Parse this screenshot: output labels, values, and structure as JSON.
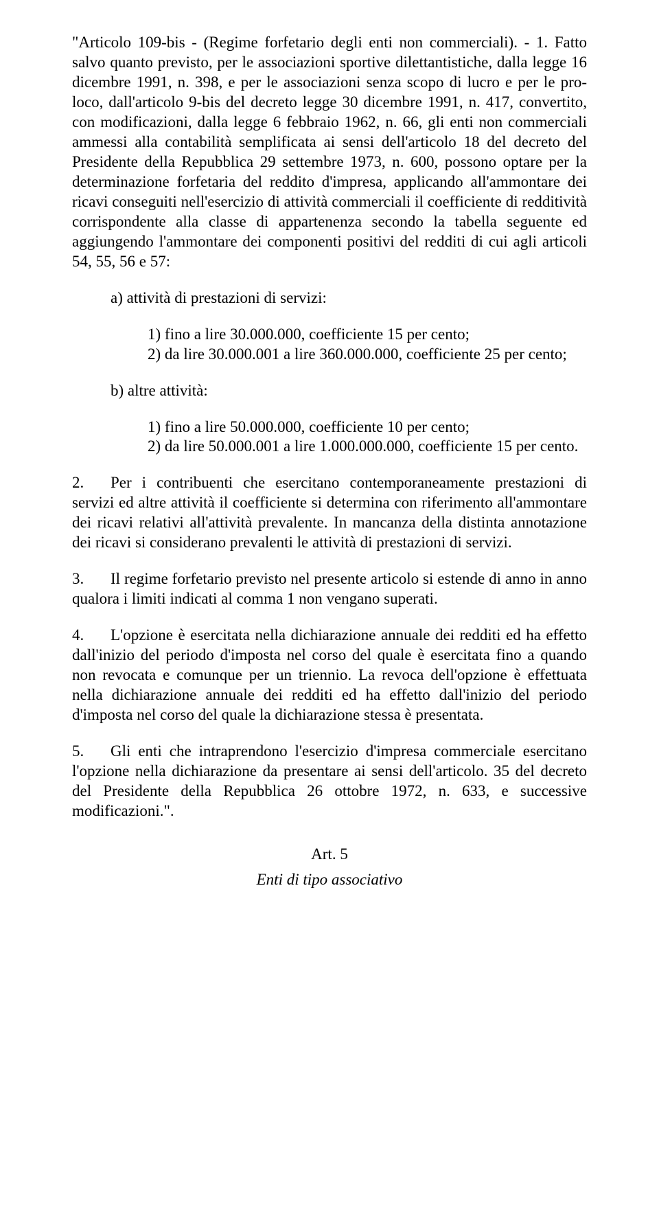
{
  "p_intro": "\"Articolo 109-bis - (Regime forfetario degli enti non commerciali). - 1. Fatto salvo quanto previsto, per le associazioni sportive dilettantistiche, dalla legge 16 dicembre 1991, n. 398, e per le associazioni senza scopo di lucro e per le pro-loco, dall'articolo 9-bis del decreto legge 30 dicembre 1991, n. 417, convertito, con modificazioni, dalla legge 6 febbraio 1962, n. 66, gli enti non commerciali ammessi alla contabilità semplificata ai sensi dell'articolo 18 del decreto del Presidente della Repubblica 29 settembre 1973, n. 600, possono optare per la determinazione forfetaria del reddito d'impresa, applicando all'ammontare dei ricavi conseguiti nell'esercizio di attività commerciali il coefficiente di redditività corrispondente alla classe di appartenenza secondo la tabella seguente ed aggiungendo l'ammontare dei componenti positivi del redditi di cui agli articoli 54, 55, 56 e 57:",
  "list_a_label": "a) attività di prestazioni di servizi:",
  "list_a_1": "1) fino a lire 30.000.000, coefficiente 15 per cento;",
  "list_a_2": "2) da lire 30.000.001 a lire 360.000.000, coefficiente 25 per cento;",
  "list_b_label": "b) altre attività:",
  "list_b_1": "1) fino a lire 50.000.000, coefficiente 10 per cento;",
  "list_b_2": "2) da lire 50.000.001 a lire 1.000.000.000, coefficiente 15 per cento.",
  "p2_num": "2.",
  "p2_text": "Per i contribuenti che esercitano contemporaneamente prestazioni di servizi ed altre attività il coefficiente si determina con riferimento all'ammontare dei ricavi relativi all'attività prevalente. In mancanza della distinta annotazione dei ricavi si considerano prevalenti le attività di prestazioni di servizi.",
  "p3_num": "3.",
  "p3_text": "Il regime forfetario previsto nel presente articolo si estende di anno in anno qualora i limiti indicati al comma 1 non vengano superati.",
  "p4_num": "4.",
  "p4_text": "L'opzione è esercitata nella dichiarazione annuale dei redditi ed ha effetto dall'inizio del periodo d'imposta nel corso del quale è esercitata fino a quando non revocata e comunque per un triennio. La revoca dell'opzione è effettuata nella dichiarazione annuale dei redditi ed ha effetto dall'inizio del periodo d'imposta nel corso del quale la dichiarazione stessa è presentata.",
  "p5_num": "5.",
  "p5_text": "Gli enti che intraprendono l'esercizio d'impresa commerciale esercitano l'opzione nella dichiarazione da presentare ai sensi dell'articolo. 35 del decreto del Presidente della Repubblica 26 ottobre 1972, n. 633, e successive modificazioni.\".",
  "art5": "Art. 5",
  "art5_title": "Enti di tipo associativo"
}
